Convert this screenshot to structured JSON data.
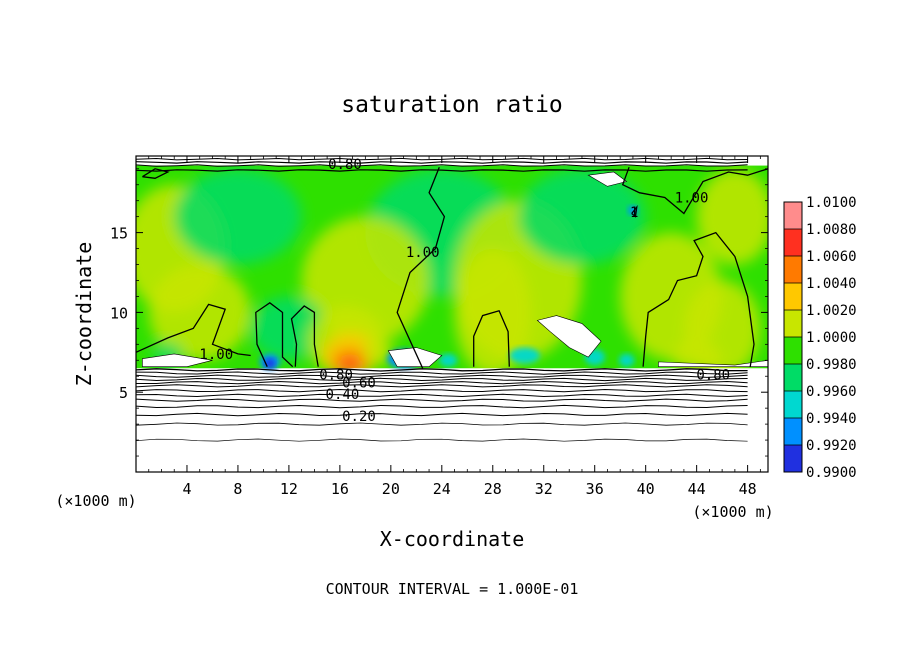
{
  "chart_data": {
    "type": "heatmap",
    "title": "saturation ratio",
    "xlabel": "X-coordinate",
    "ylabel": "Z-coordinate",
    "x_unit": "(×1000 m)",
    "xlim": [
      0,
      49.6
    ],
    "ylim": [
      0,
      19.8
    ],
    "x_ticks": [
      4,
      8,
      12,
      16,
      20,
      24,
      28,
      32,
      36,
      40,
      44,
      48
    ],
    "y_ticks": [
      5,
      10,
      15
    ],
    "footer": "CONTOUR INTERVAL = 1.000E-01",
    "colorbar": {
      "levels": [
        "1.0100",
        "1.0080",
        "1.0060",
        "1.0040",
        "1.0020",
        "1.0000",
        "0.9980",
        "0.9960",
        "0.9940",
        "0.9920",
        "0.9900"
      ],
      "colors": [
        "#ff8c8c",
        "#ff3020",
        "#ff7a00",
        "#ffc800",
        "#c8e600",
        "#2ee000",
        "#00dc66",
        "#00d8d0",
        "#0090ff",
        "#2030e0",
        "#6a1aa0"
      ]
    },
    "background_color": "#2ee000",
    "contour_labels": [
      {
        "text": "0.80",
        "x": 16.4,
        "z": 19.3
      },
      {
        "text": "1.00",
        "x": 22.5,
        "z": 13.8
      },
      {
        "text": "1.00",
        "x": 43.6,
        "z": 17.2
      },
      {
        "text": "1.00",
        "x": 6.3,
        "z": 7.4
      },
      {
        "text": "0.80",
        "x": 15.7,
        "z": 6.1
      },
      {
        "text": "0.60",
        "x": 17.5,
        "z": 5.6
      },
      {
        "text": "0.40",
        "x": 16.2,
        "z": 4.9
      },
      {
        "text": "0.20",
        "x": 17.5,
        "z": 3.5
      },
      {
        "text": "0.80",
        "x": 45.3,
        "z": 6.1
      },
      {
        "text": "1",
        "x": 39.1,
        "z": 16.3
      }
    ],
    "features": [
      {
        "kind": "max",
        "x": 16.8,
        "z": 6.6,
        "value": 1.0065
      },
      {
        "kind": "min",
        "x": 10.5,
        "z": 6.8,
        "value": 0.9945
      },
      {
        "kind": "min",
        "x": 21.2,
        "z": 7.0,
        "value": 0.993
      },
      {
        "kind": "min",
        "x": 30.5,
        "z": 7.2,
        "value": 0.9955
      }
    ],
    "cloud_base_z": 6.5,
    "cloud_top_z": 19.2
  }
}
